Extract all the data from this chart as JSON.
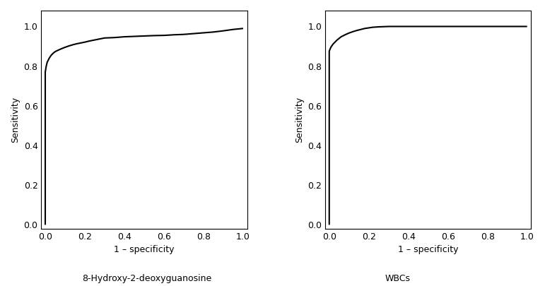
{
  "plot1": {
    "xlabel": "1 – specificity",
    "ylabel": "Sensitivity",
    "title": "8-Hydroxy-2-deoxyguanosine",
    "xlim": [
      -0.02,
      1.02
    ],
    "ylim": [
      -0.02,
      1.08
    ],
    "xticks": [
      0.0,
      0.2,
      0.4,
      0.6,
      0.8,
      1.0
    ],
    "yticks": [
      0.0,
      0.2,
      0.4,
      0.6,
      0.8,
      1.0
    ],
    "roc_fpr": [
      0.0,
      0.0,
      0.0,
      0.005,
      0.01,
      0.015,
      0.02,
      0.03,
      0.04,
      0.05,
      0.06,
      0.08,
      0.1,
      0.12,
      0.14,
      0.16,
      0.18,
      0.2,
      0.22,
      0.24,
      0.26,
      0.28,
      0.3,
      0.35,
      0.4,
      0.45,
      0.5,
      0.55,
      0.6,
      0.65,
      0.7,
      0.75,
      0.8,
      0.85,
      0.9,
      0.95,
      1.0
    ],
    "roc_tpr": [
      0.0,
      0.0,
      0.77,
      0.8,
      0.82,
      0.83,
      0.84,
      0.855,
      0.865,
      0.873,
      0.878,
      0.887,
      0.895,
      0.902,
      0.908,
      0.913,
      0.917,
      0.921,
      0.926,
      0.93,
      0.934,
      0.938,
      0.942,
      0.944,
      0.948,
      0.95,
      0.952,
      0.954,
      0.955,
      0.958,
      0.96,
      0.964,
      0.968,
      0.972,
      0.978,
      0.985,
      0.99
    ]
  },
  "plot2": {
    "xlabel": "1 – specificity",
    "ylabel": "Sensitivity",
    "title": "WBCs",
    "xlim": [
      -0.02,
      1.02
    ],
    "ylim": [
      -0.02,
      1.08
    ],
    "xticks": [
      0.0,
      0.2,
      0.4,
      0.6,
      0.8,
      1.0
    ],
    "yticks": [
      0.0,
      0.2,
      0.4,
      0.6,
      0.8,
      1.0
    ],
    "roc_fpr": [
      0.0,
      0.0,
      0.0,
      0.005,
      0.01,
      0.02,
      0.03,
      0.04,
      0.06,
      0.08,
      0.1,
      0.12,
      0.14,
      0.16,
      0.18,
      0.2,
      0.22,
      0.25,
      0.3,
      0.4,
      0.5,
      0.6,
      0.7,
      0.8,
      0.9,
      1.0
    ],
    "roc_tpr": [
      0.0,
      0.0,
      0.875,
      0.888,
      0.898,
      0.912,
      0.922,
      0.932,
      0.948,
      0.958,
      0.967,
      0.974,
      0.98,
      0.985,
      0.99,
      0.993,
      0.996,
      0.998,
      1.0,
      1.0,
      1.0,
      1.0,
      1.0,
      1.0,
      1.0,
      1.0
    ]
  },
  "line_color": "#000000",
  "line_width": 1.5,
  "font_size": 9,
  "title_font_size": 9,
  "background_color": "#ffffff"
}
